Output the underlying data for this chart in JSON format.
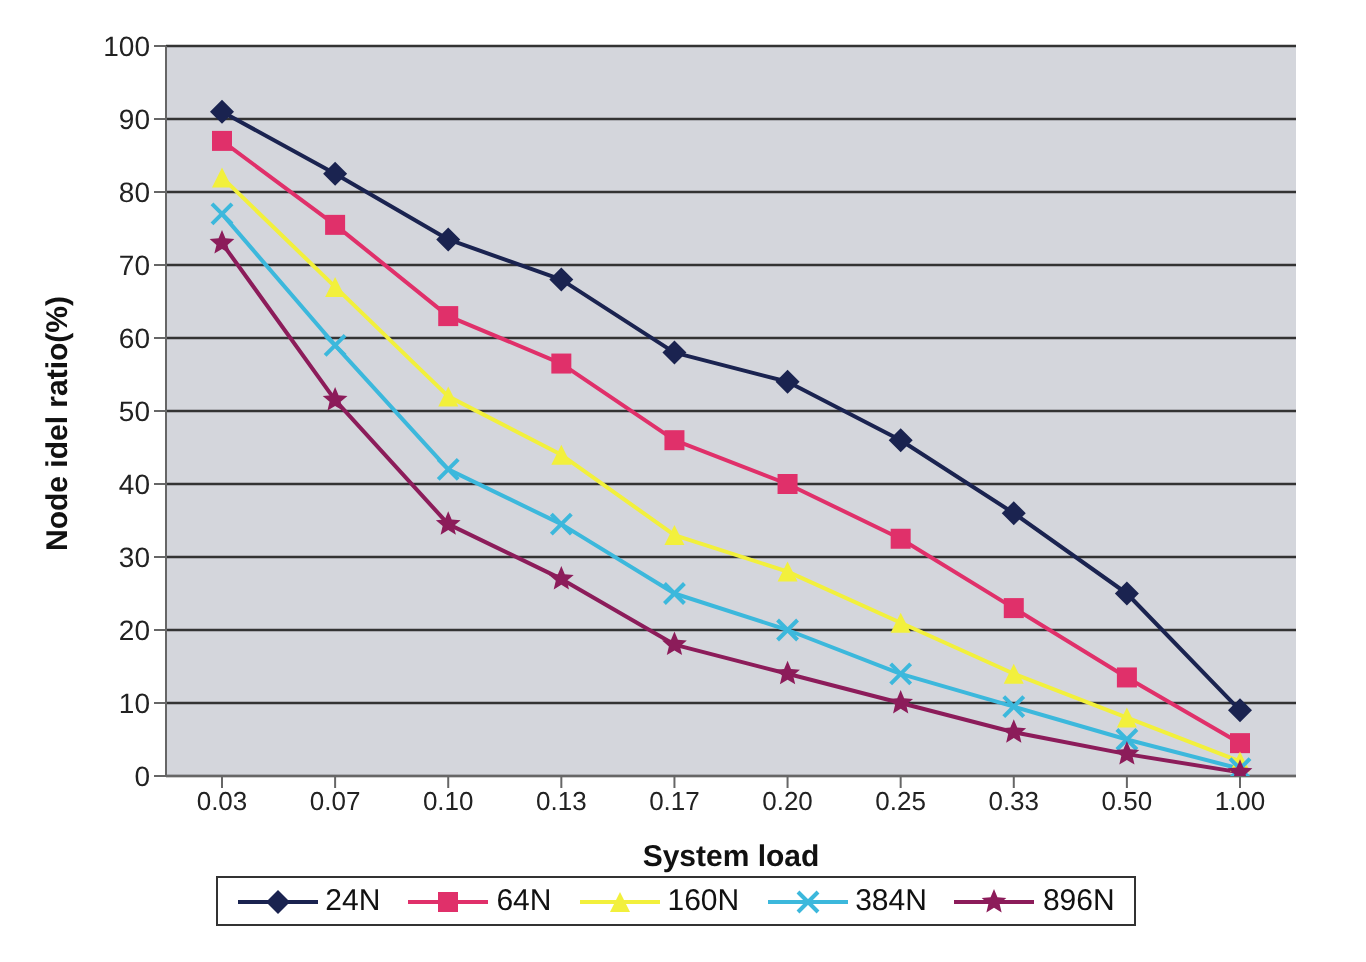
{
  "chart_data": {
    "type": "line",
    "xlabel": "System load",
    "ylabel": "Node idel ratio(%)",
    "categories": [
      "0.03",
      "0.07",
      "0.10",
      "0.13",
      "0.17",
      "0.20",
      "0.25",
      "0.33",
      "0.50",
      "1.00"
    ],
    "ylim": [
      0,
      100
    ],
    "yticks": [
      0,
      10,
      20,
      30,
      40,
      50,
      60,
      70,
      80,
      90,
      100
    ],
    "grid": "y",
    "legend": "bottom",
    "series": [
      {
        "name": "24N",
        "color": "#1a2350",
        "marker": "diamond",
        "values": [
          91,
          82.5,
          73.5,
          68,
          58,
          54,
          46,
          36,
          25,
          9
        ]
      },
      {
        "name": "64N",
        "color": "#e0306a",
        "marker": "square",
        "values": [
          87,
          75.5,
          63,
          56.5,
          46,
          40,
          32.5,
          23,
          13.5,
          4.5
        ]
      },
      {
        "name": "160N",
        "color": "#f2f03c",
        "marker": "triangle",
        "values": [
          82,
          67,
          52,
          44,
          33,
          28,
          21,
          14,
          8,
          2
        ]
      },
      {
        "name": "384N",
        "color": "#3cb8dc",
        "marker": "cross",
        "values": [
          77,
          59,
          42,
          34.5,
          25,
          20,
          14,
          9.5,
          5,
          1
        ]
      },
      {
        "name": "896N",
        "color": "#8c1c5a",
        "marker": "star",
        "values": [
          73,
          51.5,
          34.5,
          27,
          18,
          14,
          10,
          6,
          3,
          0.5
        ]
      }
    ]
  }
}
